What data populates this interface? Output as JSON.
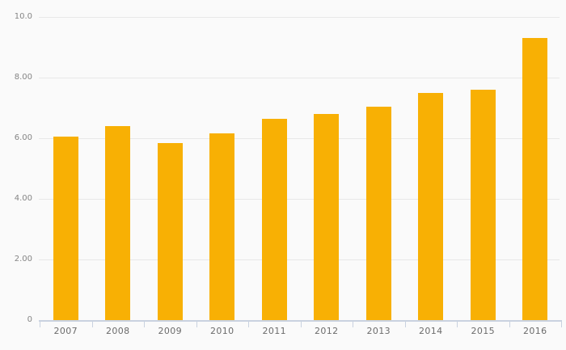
{
  "chart_data": {
    "type": "bar",
    "categories": [
      "2007",
      "2008",
      "2009",
      "2010",
      "2011",
      "2012",
      "2013",
      "2014",
      "2015",
      "2016"
    ],
    "values": [
      6.05,
      6.4,
      5.85,
      6.15,
      6.65,
      6.8,
      7.05,
      7.5,
      7.6,
      9.3
    ],
    "title": "",
    "xlabel": "",
    "ylabel": "",
    "ylim": [
      0,
      10
    ],
    "yticks": [
      {
        "value": 0,
        "label": "0"
      },
      {
        "value": 2,
        "label": "2.00"
      },
      {
        "value": 4,
        "label": "4.00"
      },
      {
        "value": 6,
        "label": "6.00"
      },
      {
        "value": 8,
        "label": "8.00"
      },
      {
        "value": 10,
        "label": "10.0"
      }
    ],
    "grid": true,
    "legend": false,
    "colors": {
      "bar": "#f8b004",
      "background": "#fafafa",
      "gridline": "#e8e8e8",
      "axis": "#c9d2e0",
      "y_tick_label": "#858585",
      "x_tick_label": "#6b6b6b"
    }
  }
}
